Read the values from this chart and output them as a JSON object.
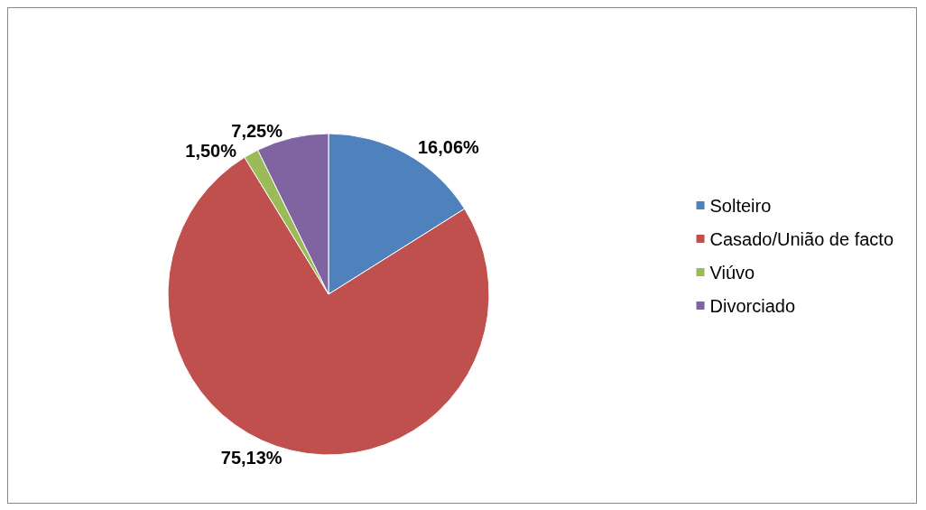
{
  "chart_data": {
    "type": "pie",
    "categories": [
      "Solteiro",
      "Casado/União de facto",
      "Viúvo",
      "Divorciado"
    ],
    "values": [
      16.06,
      75.13,
      1.5,
      7.25
    ],
    "colors": [
      "#4f81bd",
      "#c0504d",
      "#9bbb59",
      "#8064a2"
    ],
    "value_labels": [
      "16,06%",
      "75,13%",
      "1,50%",
      "7,25%"
    ],
    "legend": "right"
  }
}
